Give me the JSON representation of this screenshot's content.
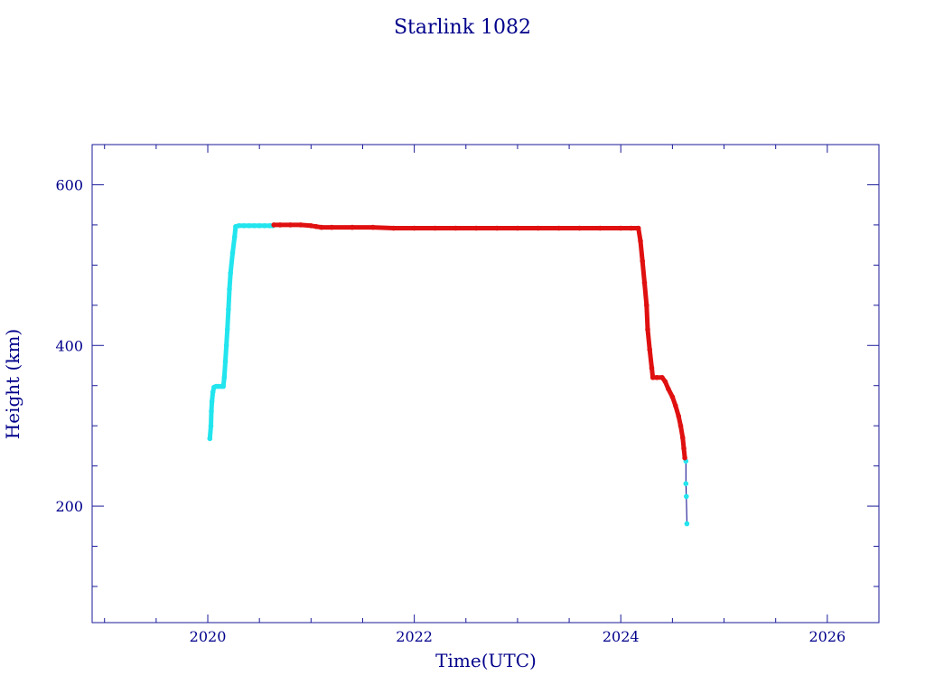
{
  "chart_data": {
    "type": "scatter",
    "title": "Starlink 1082",
    "xlabel": "Time(UTC)",
    "ylabel": "Height (km)",
    "xlim": [
      2018.88,
      2026.5
    ],
    "ylim": [
      55,
      650
    ],
    "x_major_ticks": [
      2020,
      2022,
      2024,
      2026
    ],
    "x_tick_labels": [
      "2020",
      "2022",
      "2024",
      "2026"
    ],
    "x_minor_step": 0.5,
    "y_major_ticks": [
      200,
      400,
      600
    ],
    "y_tick_labels": [
      "200",
      "400",
      "600"
    ],
    "y_minor_step": 50,
    "grid": false,
    "colors": {
      "frame": "#1a1a9a",
      "text": "#00008b",
      "connector": "#00008b",
      "series_cyan": "#22e5ee",
      "series_red": "#e01010"
    },
    "series": [
      {
        "color": "#22e5ee",
        "points": [
          [
            2020.02,
            284
          ],
          [
            2020.03,
            300
          ],
          [
            2020.035,
            318
          ],
          [
            2020.04,
            330
          ],
          [
            2020.05,
            342
          ],
          [
            2020.06,
            348
          ],
          [
            2020.08,
            349
          ],
          [
            2020.1,
            349
          ],
          [
            2020.13,
            349
          ],
          [
            2020.15,
            349
          ],
          [
            2020.16,
            360
          ],
          [
            2020.17,
            380
          ],
          [
            2020.18,
            400
          ],
          [
            2020.19,
            420
          ],
          [
            2020.2,
            445
          ],
          [
            2020.21,
            470
          ],
          [
            2020.22,
            490
          ],
          [
            2020.24,
            515
          ],
          [
            2020.26,
            535
          ],
          [
            2020.27,
            548
          ],
          [
            2020.3,
            549
          ],
          [
            2020.35,
            549
          ],
          [
            2020.4,
            549
          ],
          [
            2020.45,
            549
          ],
          [
            2020.5,
            549
          ],
          [
            2020.55,
            549
          ],
          [
            2020.6,
            549
          ],
          [
            2020.63,
            549
          ],
          [
            2024.63,
            256
          ],
          [
            2024.63,
            228
          ],
          [
            2024.635,
            212
          ],
          [
            2024.64,
            178
          ]
        ]
      },
      {
        "color": "#e01010",
        "points": [
          [
            2020.64,
            550
          ],
          [
            2020.7,
            550
          ],
          [
            2020.8,
            550
          ],
          [
            2020.9,
            550
          ],
          [
            2021.0,
            549
          ],
          [
            2021.05,
            548
          ],
          [
            2021.1,
            547
          ],
          [
            2021.2,
            547
          ],
          [
            2021.4,
            547
          ],
          [
            2021.6,
            547
          ],
          [
            2021.8,
            546
          ],
          [
            2022.0,
            546
          ],
          [
            2022.2,
            546
          ],
          [
            2022.4,
            546
          ],
          [
            2022.6,
            546
          ],
          [
            2022.8,
            546
          ],
          [
            2023.0,
            546
          ],
          [
            2023.2,
            546
          ],
          [
            2023.4,
            546
          ],
          [
            2023.6,
            546
          ],
          [
            2023.8,
            546
          ],
          [
            2024.0,
            546
          ],
          [
            2024.1,
            546
          ],
          [
            2024.17,
            546
          ],
          [
            2024.19,
            530
          ],
          [
            2024.21,
            505
          ],
          [
            2024.23,
            478
          ],
          [
            2024.25,
            450
          ],
          [
            2024.26,
            420
          ],
          [
            2024.28,
            395
          ],
          [
            2024.3,
            372
          ],
          [
            2024.31,
            360
          ],
          [
            2024.35,
            360
          ],
          [
            2024.4,
            360
          ],
          [
            2024.43,
            355
          ],
          [
            2024.46,
            346
          ],
          [
            2024.5,
            336
          ],
          [
            2024.53,
            325
          ],
          [
            2024.56,
            312
          ],
          [
            2024.58,
            300
          ],
          [
            2024.6,
            285
          ],
          [
            2024.61,
            272
          ],
          [
            2024.62,
            260
          ]
        ]
      }
    ]
  }
}
